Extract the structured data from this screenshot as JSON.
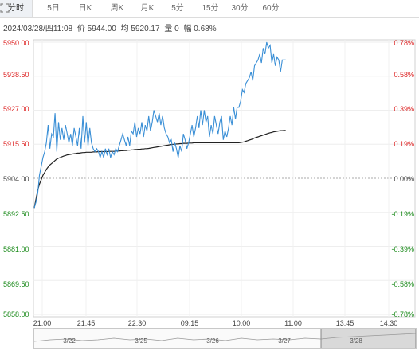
{
  "tabs": [
    {
      "label": "分时",
      "active": true
    },
    {
      "label": "5日",
      "active": false
    },
    {
      "label": "日K",
      "active": false
    },
    {
      "label": "周K",
      "active": false
    },
    {
      "label": "月K",
      "active": false
    },
    {
      "label": "5分",
      "active": false
    },
    {
      "label": "15分",
      "active": false
    },
    {
      "label": "30分",
      "active": false
    },
    {
      "label": "60分",
      "active": false
    }
  ],
  "icons": {
    "expand": "expand-icon"
  },
  "info": {
    "datetime": "2024/03/28/四11:08",
    "price": "价 5944.00",
    "avg": "均 5920.17",
    "volume": "量 0",
    "change": "幅 0.68%"
  },
  "colors": {
    "up": "#dd2222",
    "down": "#1a8a1a",
    "price_line": "#3a8fd6",
    "avg_line": "#222222",
    "neutral": "#444444"
  },
  "chart_data": {
    "type": "line",
    "y_left_ticks": [
      "5950.00",
      "5938.50",
      "5927.00",
      "5915.50",
      "5904.00",
      "5892.50",
      "5881.00",
      "5869.50",
      "5858.00"
    ],
    "y_right_ticks": [
      "0.78%",
      "0.58%",
      "0.39%",
      "0.19%",
      "0.00%",
      "-0.19%",
      "-0.39%",
      "-0.58%",
      "-0.78%"
    ],
    "x_ticks": [
      "21:00",
      "21:45",
      "22:30",
      "09:15",
      "10:00",
      "11:00",
      "13:45",
      "14:30"
    ],
    "ylim": [
      5858.0,
      5950.0
    ],
    "base_price": 5904.0,
    "price": [
      5894,
      5896,
      5899,
      5905,
      5908,
      5911,
      5913,
      5916,
      5922,
      5914,
      5919,
      5918,
      5926,
      5913,
      5923,
      5917,
      5921,
      5917,
      5922,
      5919,
      5916,
      5919,
      5915,
      5921,
      5918,
      5915,
      5921,
      5914,
      5925,
      5916,
      5923,
      5915,
      5921,
      5916,
      5914,
      5913,
      5914,
      5913,
      5911,
      5913,
      5911,
      5914,
      5912,
      5914,
      5911,
      5913,
      5912,
      5914,
      5913,
      5915,
      5917,
      5919,
      5917,
      5915,
      5918,
      5915,
      5920,
      5919,
      5923,
      5918,
      5921,
      5919,
      5923,
      5918,
      5922,
      5920,
      5925,
      5920,
      5923,
      5927,
      5925,
      5923,
      5926,
      5922,
      5925,
      5921,
      5919,
      5918,
      5916,
      5917,
      5913,
      5916,
      5914,
      5911,
      5915,
      5913,
      5919,
      5917,
      5914,
      5916,
      5919,
      5922,
      5918,
      5921,
      5925,
      5921,
      5927,
      5922,
      5927,
      5923,
      5925,
      5918,
      5922,
      5919,
      5925,
      5922,
      5919,
      5923,
      5925,
      5917,
      5920,
      5918,
      5921,
      5925,
      5922,
      5928,
      5924,
      5928,
      5928,
      5930,
      5934,
      5933,
      5936,
      5937,
      5938,
      5940,
      5937,
      5942,
      5943,
      5944,
      5946,
      5943,
      5948,
      5946,
      5950,
      5948,
      5949,
      5943,
      5946,
      5942,
      5945,
      5944,
      5940,
      5944,
      5944,
      5944
    ],
    "avg": [
      5894,
      5897,
      5900,
      5902,
      5903.5,
      5905,
      5906,
      5907,
      5907.8,
      5908.5,
      5909,
      5909.5,
      5910,
      5910.5,
      5910.8,
      5911,
      5911.3,
      5911.5,
      5911.7,
      5911.9,
      5912,
      5912.1,
      5912.2,
      5912.3,
      5912.4,
      5912.5,
      5912.5,
      5912.6,
      5912.7,
      5912.7,
      5912.8,
      5912.8,
      5912.8,
      5912.8,
      5912.9,
      5912.9,
      5912.9,
      5913,
      5913,
      5913,
      5913,
      5913,
      5913,
      5913.1,
      5913.1,
      5913.1,
      5913.1,
      5913.2,
      5913.2,
      5913.2,
      5913.3,
      5913.3,
      5913.4,
      5913.4,
      5913.5,
      5913.5,
      5913.6,
      5913.6,
      5913.7,
      5913.7,
      5913.8,
      5913.8,
      5913.9,
      5913.9,
      5914,
      5914,
      5914.1,
      5914.2,
      5914.3,
      5914.4,
      5914.5,
      5914.6,
      5914.7,
      5914.8,
      5914.9,
      5915,
      5915.1,
      5915.2,
      5915.3,
      5915.4,
      5915.5,
      5915.5,
      5915.6,
      5915.6,
      5915.7,
      5915.7,
      5915.8,
      5915.8,
      5915.8,
      5915.9,
      5915.9,
      5915.9,
      5916,
      5916,
      5916,
      5916,
      5916,
      5916,
      5916,
      5916,
      5916,
      5916,
      5916,
      5916,
      5916,
      5916,
      5916,
      5916,
      5916,
      5916,
      5916,
      5916,
      5916,
      5916,
      5916,
      5916,
      5916,
      5916,
      5916,
      5916.1,
      5916.2,
      5916.3,
      5916.5,
      5916.7,
      5916.9,
      5917.1,
      5917.3,
      5917.6,
      5917.8,
      5918,
      5918.2,
      5918.4,
      5918.6,
      5918.8,
      5919,
      5919.2,
      5919.4,
      5919.5,
      5919.7,
      5919.8,
      5919.9,
      5920,
      5920.1,
      5920.1,
      5920.2,
      5920.2
    ]
  },
  "navigator": {
    "labels": [
      "3/22",
      "3/25",
      "3/26",
      "3/27",
      "3/28"
    ]
  }
}
